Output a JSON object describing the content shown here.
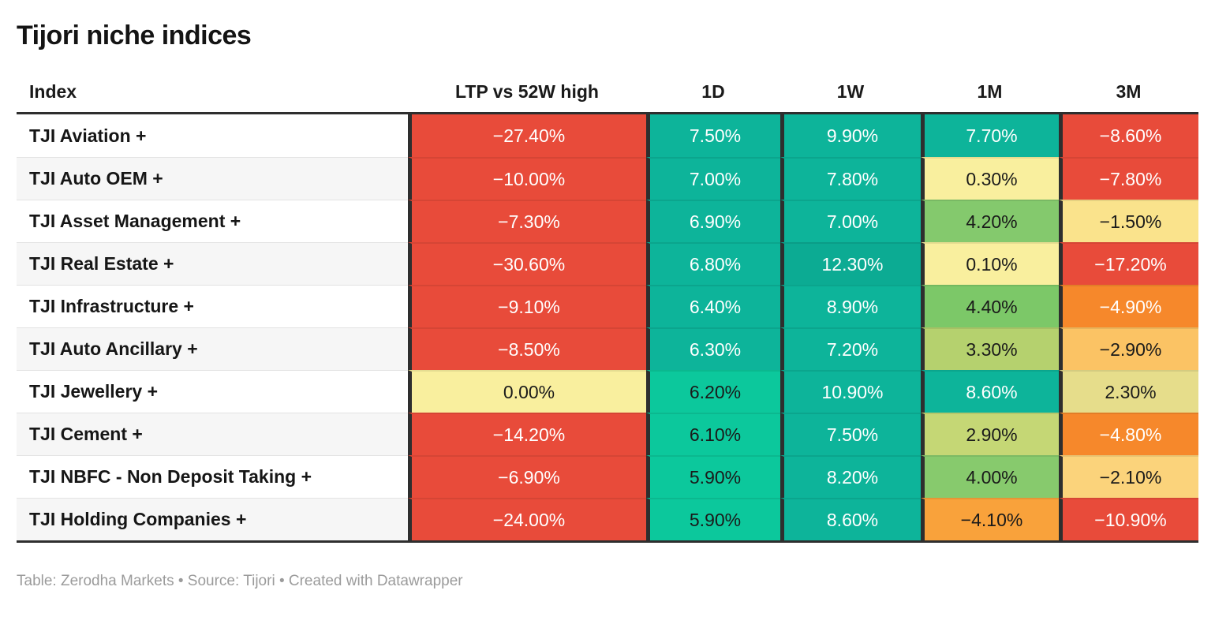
{
  "title": "Tijori niche indices",
  "footer": "Table: Zerodha Markets • Source: Tijori • Created with Datawrapper",
  "colors": {
    "red": "#e84b3a",
    "orange": "#f6882b",
    "amber": "#f9a23b",
    "light_orange": "#fbc364",
    "pale_orange": "#fbd37b",
    "light_yellow": "#fae38c",
    "pale_yellow": "#f9ef9e",
    "khaki": "#e6dd8b",
    "yellow_green_light": "#c5d775",
    "yellow_green": "#b5d16e",
    "green": "#82c96c",
    "bright_green": "#0cc89c",
    "teal": "#0db49a",
    "header_border": "#2e2e2e",
    "text_dark": "#1a1a1a",
    "text_light": "#ffffff"
  },
  "table": {
    "columns": [
      {
        "key": "index",
        "label": "Index"
      },
      {
        "key": "ltp_vs_52w_high",
        "label": "LTP vs 52W high"
      },
      {
        "key": "d1",
        "label": "1D"
      },
      {
        "key": "w1",
        "label": "1W"
      },
      {
        "key": "m1",
        "label": "1M"
      },
      {
        "key": "m3",
        "label": "3M"
      }
    ],
    "rows": [
      {
        "index": "TJI Aviation +",
        "cells": [
          {
            "v": "−27.40%",
            "bg": "#e84b3a",
            "fg": "#ffffff"
          },
          {
            "v": "7.50%",
            "bg": "#0db49a",
            "fg": "#ffffff"
          },
          {
            "v": "9.90%",
            "bg": "#0db49a",
            "fg": "#ffffff"
          },
          {
            "v": "7.70%",
            "bg": "#0db49a",
            "fg": "#ffffff"
          },
          {
            "v": "−8.60%",
            "bg": "#e84b3a",
            "fg": "#ffffff"
          }
        ]
      },
      {
        "index": "TJI Auto OEM +",
        "cells": [
          {
            "v": "−10.00%",
            "bg": "#e84b3a",
            "fg": "#ffffff"
          },
          {
            "v": "7.00%",
            "bg": "#0db49a",
            "fg": "#ffffff"
          },
          {
            "v": "7.80%",
            "bg": "#0db49a",
            "fg": "#ffffff"
          },
          {
            "v": "0.30%",
            "bg": "#f9ef9e",
            "fg": "#1a1a1a"
          },
          {
            "v": "−7.80%",
            "bg": "#e84b3a",
            "fg": "#ffffff"
          }
        ]
      },
      {
        "index": "TJI Asset Management +",
        "cells": [
          {
            "v": "−7.30%",
            "bg": "#e84b3a",
            "fg": "#ffffff"
          },
          {
            "v": "6.90%",
            "bg": "#0db49a",
            "fg": "#ffffff"
          },
          {
            "v": "7.00%",
            "bg": "#0db49a",
            "fg": "#ffffff"
          },
          {
            "v": "4.20%",
            "bg": "#84c96d",
            "fg": "#1a1a1a"
          },
          {
            "v": "−1.50%",
            "bg": "#fae38c",
            "fg": "#1a1a1a"
          }
        ]
      },
      {
        "index": "TJI Real Estate +",
        "cells": [
          {
            "v": "−30.60%",
            "bg": "#e84b3a",
            "fg": "#ffffff"
          },
          {
            "v": "6.80%",
            "bg": "#0db49a",
            "fg": "#ffffff"
          },
          {
            "v": "12.30%",
            "bg": "#0cab93",
            "fg": "#ffffff"
          },
          {
            "v": "0.10%",
            "bg": "#f9ef9e",
            "fg": "#1a1a1a"
          },
          {
            "v": "−17.20%",
            "bg": "#e84b3a",
            "fg": "#ffffff"
          }
        ]
      },
      {
        "index": "TJI Infrastructure +",
        "cells": [
          {
            "v": "−9.10%",
            "bg": "#e84b3a",
            "fg": "#ffffff"
          },
          {
            "v": "6.40%",
            "bg": "#0db49a",
            "fg": "#ffffff"
          },
          {
            "v": "8.90%",
            "bg": "#0db49a",
            "fg": "#ffffff"
          },
          {
            "v": "4.40%",
            "bg": "#7cc868",
            "fg": "#1a1a1a"
          },
          {
            "v": "−4.90%",
            "bg": "#f6882b",
            "fg": "#ffffff"
          }
        ]
      },
      {
        "index": "TJI Auto Ancillary +",
        "cells": [
          {
            "v": "−8.50%",
            "bg": "#e84b3a",
            "fg": "#ffffff"
          },
          {
            "v": "6.30%",
            "bg": "#0db49a",
            "fg": "#ffffff"
          },
          {
            "v": "7.20%",
            "bg": "#0db49a",
            "fg": "#ffffff"
          },
          {
            "v": "3.30%",
            "bg": "#b5d16e",
            "fg": "#1a1a1a"
          },
          {
            "v": "−2.90%",
            "bg": "#fbc364",
            "fg": "#1a1a1a"
          }
        ]
      },
      {
        "index": "TJI Jewellery +",
        "cells": [
          {
            "v": "0.00%",
            "bg": "#f9ef9e",
            "fg": "#1a1a1a"
          },
          {
            "v": "6.20%",
            "bg": "#0cc89c",
            "fg": "#1a1a1a"
          },
          {
            "v": "10.90%",
            "bg": "#0db49a",
            "fg": "#ffffff"
          },
          {
            "v": "8.60%",
            "bg": "#0db49a",
            "fg": "#ffffff"
          },
          {
            "v": "2.30%",
            "bg": "#e6dd8b",
            "fg": "#1a1a1a"
          }
        ]
      },
      {
        "index": "TJI Cement +",
        "cells": [
          {
            "v": "−14.20%",
            "bg": "#e84b3a",
            "fg": "#ffffff"
          },
          {
            "v": "6.10%",
            "bg": "#0cc89c",
            "fg": "#1a1a1a"
          },
          {
            "v": "7.50%",
            "bg": "#0db49a",
            "fg": "#ffffff"
          },
          {
            "v": "2.90%",
            "bg": "#c5d775",
            "fg": "#1a1a1a"
          },
          {
            "v": "−4.80%",
            "bg": "#f6882b",
            "fg": "#ffffff"
          }
        ]
      },
      {
        "index": "TJI NBFC - Non Deposit Taking +",
        "cells": [
          {
            "v": "−6.90%",
            "bg": "#e84b3a",
            "fg": "#ffffff"
          },
          {
            "v": "5.90%",
            "bg": "#0cc89c",
            "fg": "#1a1a1a"
          },
          {
            "v": "8.20%",
            "bg": "#0db49a",
            "fg": "#ffffff"
          },
          {
            "v": "4.00%",
            "bg": "#87ca6d",
            "fg": "#1a1a1a"
          },
          {
            "v": "−2.10%",
            "bg": "#fbd37b",
            "fg": "#1a1a1a"
          }
        ]
      },
      {
        "index": "TJI Holding Companies +",
        "cells": [
          {
            "v": "−24.00%",
            "bg": "#e84b3a",
            "fg": "#ffffff"
          },
          {
            "v": "5.90%",
            "bg": "#0cc89c",
            "fg": "#1a1a1a"
          },
          {
            "v": "8.60%",
            "bg": "#0db49a",
            "fg": "#ffffff"
          },
          {
            "v": "−4.10%",
            "bg": "#f9a23b",
            "fg": "#1a1a1a"
          },
          {
            "v": "−10.90%",
            "bg": "#e84b3a",
            "fg": "#ffffff"
          }
        ]
      }
    ]
  },
  "chart_data": {
    "type": "table",
    "title": "Tijori niche indices",
    "columns": [
      "Index",
      "LTP vs 52W high",
      "1D",
      "1W",
      "1M",
      "3M"
    ],
    "rows": [
      [
        "TJI Aviation +",
        -27.4,
        7.5,
        9.9,
        7.7,
        -8.6
      ],
      [
        "TJI Auto OEM +",
        -10.0,
        7.0,
        7.8,
        0.3,
        -7.8
      ],
      [
        "TJI Asset Management +",
        -7.3,
        6.9,
        7.0,
        4.2,
        -1.5
      ],
      [
        "TJI Real Estate +",
        -30.6,
        6.8,
        12.3,
        0.1,
        -17.2
      ],
      [
        "TJI Infrastructure +",
        -9.1,
        6.4,
        8.9,
        4.4,
        -4.9
      ],
      [
        "TJI Auto Ancillary +",
        -8.5,
        6.3,
        7.2,
        3.3,
        -2.9
      ],
      [
        "TJI Jewellery +",
        0.0,
        6.2,
        10.9,
        8.6,
        2.3
      ],
      [
        "TJI Cement +",
        -14.2,
        6.1,
        7.5,
        2.9,
        -4.8
      ],
      [
        "TJI NBFC - Non Deposit Taking +",
        -6.9,
        5.9,
        8.2,
        4.0,
        -2.1
      ],
      [
        "TJI Holding Companies +",
        -24.0,
        5.9,
        8.6,
        -4.1,
        -10.9
      ]
    ],
    "notes": "Heatmap-colored table: red for strongly negative, orange/yellow near zero-negative, yellow-green for small positive, green/teal for strongly positive values."
  }
}
